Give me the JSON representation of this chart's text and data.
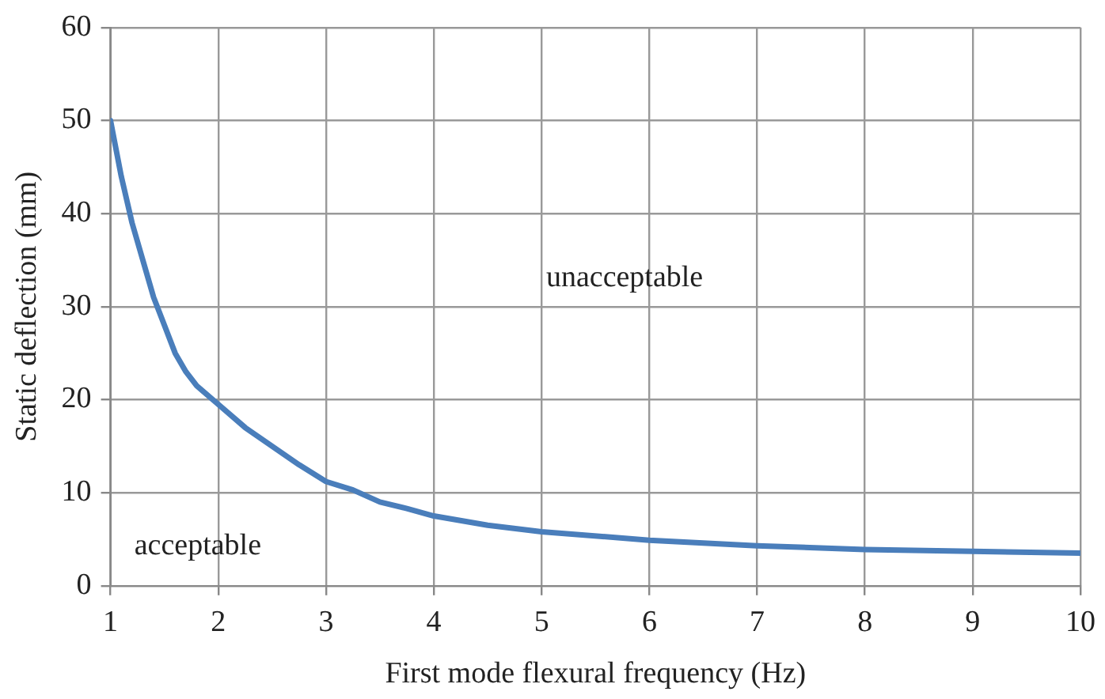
{
  "chart_data": {
    "type": "line",
    "xlabel": "First mode flexural frequency (Hz)",
    "ylabel": "Static deflection (mm)",
    "xlim": [
      1,
      10
    ],
    "xticks": [
      1,
      2,
      3,
      4,
      5,
      6,
      7,
      8,
      9,
      10
    ],
    "ylim": [
      0,
      60
    ],
    "yticks": [
      0,
      10,
      20,
      30,
      40,
      50,
      60
    ],
    "grid": true,
    "legend": false,
    "marker": "none",
    "line_style": "solid",
    "series": [
      {
        "color": "#4a7ebb",
        "x": [
          1,
          1.1,
          1.2,
          1.3,
          1.4,
          1.5,
          1.6,
          1.7,
          1.8,
          2,
          2.25,
          2.5,
          2.75,
          3,
          3.25,
          3.5,
          3.75,
          4,
          4.5,
          5,
          6,
          7,
          8,
          9,
          10
        ],
        "values": [
          50,
          44,
          39,
          35,
          31,
          28,
          25,
          23,
          21.5,
          19.5,
          17,
          15,
          13,
          11.2,
          10.3,
          9,
          8.3,
          7.5,
          6.5,
          5.8,
          4.9,
          4.3,
          3.9,
          3.7,
          3.5
        ]
      }
    ],
    "annotations": [
      "unacceptable",
      "acceptable"
    ]
  }
}
